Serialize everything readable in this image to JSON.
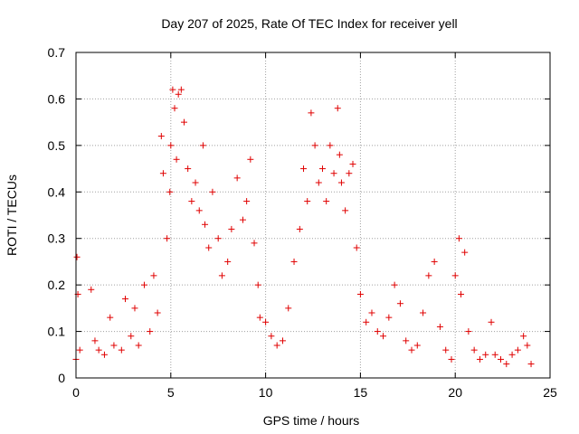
{
  "chart_data": {
    "type": "scatter",
    "title": "Day 207 of 2025, Rate Of TEC Index for receiver yell",
    "xlabel": "GPS time / hours",
    "ylabel": "ROTI / TECUs",
    "xlim": [
      0,
      25
    ],
    "ylim": [
      0,
      0.7
    ],
    "x_ticks": [
      "0",
      "5",
      "10",
      "15",
      "20",
      "25"
    ],
    "y_ticks": [
      "0",
      "0.1",
      "0.2",
      "0.3",
      "0.4",
      "0.5",
      "0.6",
      "0.7"
    ],
    "grid": true,
    "marker": "+",
    "color": "#e00000",
    "series": [
      {
        "x": [
          0.0,
          0.05,
          0.1,
          0.2,
          0.8,
          1.0,
          1.2,
          1.5,
          1.8,
          2.0,
          2.4,
          2.6,
          2.9,
          3.1,
          3.3,
          3.6,
          3.9,
          4.1,
          4.3,
          4.5,
          4.6,
          4.8,
          4.95,
          5.0,
          5.1,
          5.2,
          5.3,
          5.4,
          5.55,
          5.7,
          5.9,
          6.1,
          6.3,
          6.5,
          6.7,
          6.8,
          7.0,
          7.2,
          7.5,
          7.7,
          8.0,
          8.2,
          8.5,
          8.8,
          9.0,
          9.2,
          9.4,
          9.6,
          9.7,
          10.0,
          10.3,
          10.6,
          10.9,
          11.2,
          11.5,
          11.8,
          12.0,
          12.2,
          12.4,
          12.6,
          12.8,
          13.0,
          13.2,
          13.4,
          13.6,
          13.8,
          13.9,
          14.0,
          14.2,
          14.4,
          14.6,
          14.8,
          15.0,
          15.3,
          15.6,
          15.9,
          16.2,
          16.5,
          16.8,
          17.1,
          17.4,
          17.7,
          18.0,
          18.3,
          18.6,
          18.9,
          19.2,
          19.5,
          19.8,
          20.0,
          20.2,
          20.3,
          20.5,
          20.7,
          21.0,
          21.3,
          21.6,
          21.9,
          22.1,
          22.4,
          22.7,
          23.0,
          23.3,
          23.6,
          23.8,
          24.0
        ],
        "y": [
          0.04,
          0.26,
          0.18,
          0.06,
          0.19,
          0.08,
          0.06,
          0.05,
          0.13,
          0.07,
          0.06,
          0.17,
          0.09,
          0.15,
          0.07,
          0.2,
          0.1,
          0.22,
          0.14,
          0.52,
          0.44,
          0.3,
          0.4,
          0.5,
          0.62,
          0.58,
          0.47,
          0.61,
          0.62,
          0.55,
          0.45,
          0.38,
          0.42,
          0.36,
          0.5,
          0.33,
          0.28,
          0.4,
          0.3,
          0.22,
          0.25,
          0.32,
          0.43,
          0.34,
          0.38,
          0.47,
          0.29,
          0.2,
          0.13,
          0.12,
          0.09,
          0.07,
          0.08,
          0.15,
          0.25,
          0.32,
          0.45,
          0.38,
          0.57,
          0.5,
          0.42,
          0.45,
          0.38,
          0.5,
          0.44,
          0.58,
          0.48,
          0.42,
          0.36,
          0.44,
          0.46,
          0.28,
          0.18,
          0.12,
          0.14,
          0.1,
          0.09,
          0.13,
          0.2,
          0.16,
          0.08,
          0.06,
          0.07,
          0.14,
          0.22,
          0.25,
          0.11,
          0.06,
          0.04,
          0.22,
          0.3,
          0.18,
          0.27,
          0.1,
          0.06,
          0.04,
          0.05,
          0.12,
          0.05,
          0.04,
          0.03,
          0.05,
          0.06,
          0.09,
          0.07,
          0.03
        ]
      }
    ]
  }
}
